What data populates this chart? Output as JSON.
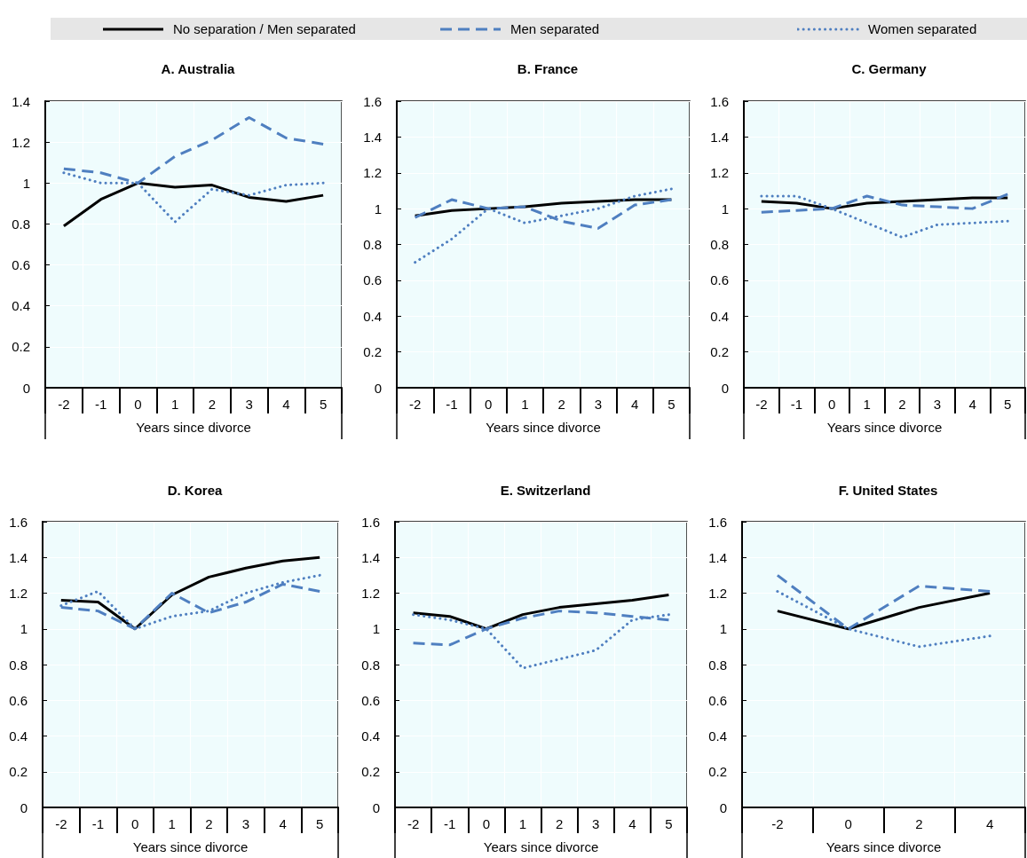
{
  "chart_data": [
    {
      "type": "line",
      "title": "A. Australia",
      "xlabel": "Years since divorce",
      "categories": [
        "-2",
        "-1",
        "0",
        "1",
        "2",
        "3",
        "4",
        "5"
      ],
      "ylim": [
        0,
        1.4
      ],
      "yticks": [
        0,
        0.2,
        0.4,
        0.6,
        0.8,
        1,
        1.2,
        1.4
      ],
      "grid": true,
      "legend": "top",
      "series": [
        {
          "name": "No separation / Men separated",
          "color": "#000000",
          "line_style": "solid",
          "values": [
            0.79,
            0.92,
            1,
            0.98,
            0.99,
            0.93,
            0.91,
            0.94
          ]
        },
        {
          "name": "Men separated",
          "color": "#4f7fc0",
          "line_style": "dashed",
          "values": [
            1.07,
            1.05,
            1,
            1.13,
            1.21,
            1.32,
            1.22,
            1.19
          ]
        },
        {
          "name": "Women separated",
          "color": "#4f7fc0",
          "line_style": "dotted",
          "values": [
            1.05,
            1,
            1,
            0.81,
            0.97,
            0.94,
            0.99,
            1
          ]
        }
      ]
    },
    {
      "type": "line",
      "title": "B. France",
      "xlabel": "Years since divorce",
      "categories": [
        "-2",
        "-1",
        "0",
        "1",
        "2",
        "3",
        "4",
        "5"
      ],
      "ylim": [
        0,
        1.6
      ],
      "yticks": [
        0,
        0.2,
        0.4,
        0.6,
        0.8,
        1,
        1.2,
        1.4,
        1.6
      ],
      "grid": true,
      "series": [
        {
          "name": "No separation / Men separated",
          "color": "#000000",
          "line_style": "solid",
          "values": [
            0.96,
            0.99,
            1,
            1.01,
            1.03,
            1.04,
            1.05,
            1.05
          ]
        },
        {
          "name": "Men separated",
          "color": "#4f7fc0",
          "line_style": "dashed",
          "values": [
            0.95,
            1.05,
            1,
            1.01,
            0.93,
            0.89,
            1.02,
            1.05
          ]
        },
        {
          "name": "Women separated",
          "color": "#4f7fc0",
          "line_style": "dotted",
          "values": [
            0.7,
            0.83,
            1,
            0.92,
            0.96,
            1,
            1.07,
            1.11
          ]
        }
      ]
    },
    {
      "type": "line",
      "title": "C. Germany",
      "xlabel": "Years since divorce",
      "categories": [
        "-2",
        "-1",
        "0",
        "1",
        "2",
        "3",
        "4",
        "5"
      ],
      "ylim": [
        0,
        1.6
      ],
      "yticks": [
        0,
        0.2,
        0.4,
        0.6,
        0.8,
        1,
        1.2,
        1.4,
        1.6
      ],
      "grid": true,
      "series": [
        {
          "name": "No separation / Men separated",
          "color": "#000000",
          "line_style": "solid",
          "values": [
            1.04,
            1.03,
            1,
            1.03,
            1.04,
            1.05,
            1.06,
            1.06
          ]
        },
        {
          "name": "Men separated",
          "color": "#4f7fc0",
          "line_style": "dashed",
          "values": [
            0.98,
            0.99,
            1,
            1.07,
            1.02,
            1.01,
            1,
            1.08
          ]
        },
        {
          "name": "Women separated",
          "color": "#4f7fc0",
          "line_style": "dotted",
          "values": [
            1.07,
            1.07,
            1,
            0.92,
            0.84,
            0.91,
            0.92,
            0.93
          ]
        }
      ]
    },
    {
      "type": "line",
      "title": "D. Korea",
      "xlabel": "Years since divorce",
      "categories": [
        "-2",
        "-1",
        "0",
        "1",
        "2",
        "3",
        "4",
        "5"
      ],
      "ylim": [
        0,
        1.6
      ],
      "yticks": [
        0,
        0.2,
        0.4,
        0.6,
        0.8,
        1,
        1.2,
        1.4,
        1.6
      ],
      "grid": true,
      "series": [
        {
          "name": "No separation / Men separated",
          "color": "#000000",
          "line_style": "solid",
          "values": [
            1.16,
            1.15,
            1,
            1.19,
            1.29,
            1.34,
            1.38,
            1.4
          ]
        },
        {
          "name": "Men separated",
          "color": "#4f7fc0",
          "line_style": "dashed",
          "values": [
            1.12,
            1.1,
            1,
            1.2,
            1.09,
            1.15,
            1.25,
            1.21
          ]
        },
        {
          "name": "Women separated",
          "color": "#4f7fc0",
          "line_style": "dotted",
          "values": [
            1.13,
            1.21,
            1,
            1.07,
            1.1,
            1.2,
            1.26,
            1.3
          ]
        }
      ]
    },
    {
      "type": "line",
      "title": "E. Switzerland",
      "xlabel": "Years since divorce",
      "categories": [
        "-2",
        "-1",
        "0",
        "1",
        "2",
        "3",
        "4",
        "5"
      ],
      "ylim": [
        0,
        1.6
      ],
      "yticks": [
        0,
        0.2,
        0.4,
        0.6,
        0.8,
        1,
        1.2,
        1.4,
        1.6
      ],
      "grid": true,
      "series": [
        {
          "name": "No separation / Men separated",
          "color": "#000000",
          "line_style": "solid",
          "values": [
            1.09,
            1.07,
            1,
            1.08,
            1.12,
            1.14,
            1.16,
            1.19
          ]
        },
        {
          "name": "Men separated",
          "color": "#4f7fc0",
          "line_style": "dashed",
          "values": [
            0.92,
            0.91,
            1,
            1.06,
            1.1,
            1.09,
            1.07,
            1.05
          ]
        },
        {
          "name": "Women separated",
          "color": "#4f7fc0",
          "line_style": "dotted",
          "values": [
            1.08,
            1.05,
            1,
            0.78,
            0.83,
            0.88,
            1.05,
            1.08
          ]
        }
      ]
    },
    {
      "type": "line",
      "title": "F. United States",
      "xlabel": "Years since divorce",
      "categories": [
        "-2",
        "0",
        "2",
        "4"
      ],
      "ylim": [
        0,
        1.6
      ],
      "yticks": [
        0,
        0.2,
        0.4,
        0.6,
        0.8,
        1,
        1.2,
        1.4,
        1.6
      ],
      "grid": true,
      "series": [
        {
          "name": "No separation / Men separated",
          "color": "#000000",
          "line_style": "solid",
          "values": [
            1.1,
            1,
            1.12,
            1.2
          ]
        },
        {
          "name": "Men separated",
          "color": "#4f7fc0",
          "line_style": "dashed",
          "values": [
            1.3,
            1,
            1.24,
            1.21
          ]
        },
        {
          "name": "Women separated",
          "color": "#4f7fc0",
          "line_style": "dotted",
          "values": [
            1.21,
            1,
            0.9,
            0.96
          ]
        }
      ]
    }
  ]
}
